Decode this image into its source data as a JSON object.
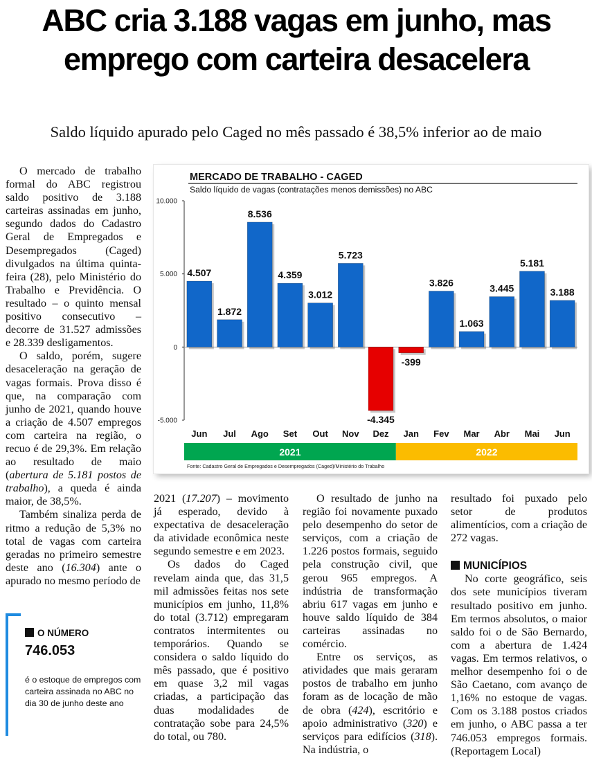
{
  "headline": "ABC cria 3.188 vagas em junho, mas emprego com carteira desacelera",
  "subhead": "Saldo líquido apurado pelo Caged no mês passado é 38,5% inferior ao de maio",
  "col1": {
    "p1": "O mercado de trabalho formal do ABC registrou saldo positivo de 3.188 carteiras assinadas em junho, segundo dados do Cadastro Geral de Empregados e Desempregados (Caged) divulgados na última quinta-feira (28), pelo Ministério do Trabalho e Previdência. O resultado – o quinto mensal positivo consecutivo – decorre de 31.527 admissões e 28.339 desligamentos.",
    "p2a": "O saldo, porém, sugere desaceleração na geração de vagas formais. Prova disso é que, na comparação com junho de 2021, quando houve a criação de 4.507 empregos com carteira na região, o recuo é de 29,3%. Em relação ao resultado de maio (",
    "p2i": "abertura de 5.181 postos de trabalho",
    "p2b": "), a queda é ainda maior, de 38,5%.",
    "p3a": "Também sinaliza perda de ritmo a redução de 5,3% no total de vagas com carteira geradas no primeiro semestre deste ano (",
    "p3i": "16.304",
    "p3b": ") ante o apurado no mesmo período de"
  },
  "col2": {
    "p1a": "2021 (",
    "p1i": "17.207",
    "p1b": ") – movimento já esperado, devido à expectativa de desaceleração da atividade econômica neste segundo semestre e em 2023.",
    "p2": "Os dados do Caged revelam ainda que, das 31,5 mil admissões feitas nos sete municípios em junho, 11,8% do total (3.712) empregaram contratos intermitentes ou temporários. Quando se considera o saldo líquido do mês passado, que é positivo em quase 3,2 mil vagas criadas, a participação das duas modalidades de contratação sobe para 24,5% do total, ou 780."
  },
  "col3": {
    "p1": "O resultado de junho na região foi novamente puxado pelo desempenho do setor de serviços, com a criação de 1.226 postos formais, seguido pela construção civil, que gerou 965 empregos. A indústria de transformação abriu 617 vagas em junho e houve saldo líquido de 384 carteiras assinadas no comércio.",
    "p2a": "Entre os serviços, as atividades que mais geraram postos de trabalho em junho foram as de locação de mão de obra (",
    "p2i1": "424",
    "p2b": "), escritório e apoio administrativo (",
    "p2i2": "320",
    "p2c": ") e serviços para edifícios (",
    "p2i3": "318",
    "p2d": "). Na indústria, o"
  },
  "col4": {
    "p1": "resultado foi puxado pelo setor de produtos alimentícios, com a criação de 272 vagas.",
    "section_title": "MUNICÍPIOS",
    "p2": "No corte geográfico, seis dos sete municípios tiveram resultado positivo em junho. Em termos absolutos, o maior saldo foi o de São Bernardo, com a abertura de 1.424 vagas. Em termos relativos, o melhor desempenho foi o de São Caetano, com avanço de 1,16% no estoque de vagas. Com os 3.188 postos criados em junho, o ABC passa a ter 746.053 empregos formais. (Reportagem Local)"
  },
  "number_box": {
    "label": "O NÚMERO",
    "value": "746.053",
    "description": "é o estoque de empregos com carteira assinada no ABC no dia 30 de junho deste ano"
  },
  "chart_data": {
    "type": "bar",
    "title": "MERCADO DE TRABALHO - CAGED",
    "subtitle": "Saldo líquido de vagas (contratações menos demissões) no ABC",
    "categories": [
      "Jun",
      "Jul",
      "Ago",
      "Set",
      "Out",
      "Nov",
      "Dez",
      "Jan",
      "Fev",
      "Mar",
      "Abr",
      "Mai",
      "Jun"
    ],
    "values": [
      4507,
      1872,
      8536,
      4359,
      3012,
      5723,
      -4345,
      -399,
      3826,
      1063,
      3445,
      5181,
      3188
    ],
    "value_labels": [
      "4.507",
      "1.872",
      "8.536",
      "4.359",
      "3.012",
      "5.723",
      "-4.345",
      "-399",
      "3.826",
      "1.063",
      "3.445",
      "5.181",
      "3.188"
    ],
    "ylim": [
      -5000,
      10000
    ],
    "yticks": [
      {
        "value": 10000,
        "label": "10.000"
      },
      {
        "value": 5000,
        "label": "5.000"
      },
      {
        "value": 0,
        "label": "0"
      },
      {
        "value": -5000,
        "label": "-5.000"
      }
    ],
    "xlabel": "",
    "ylabel": "",
    "grid": false,
    "years": [
      {
        "label": "2021",
        "from": 0,
        "to": 6,
        "color": "#00a650"
      },
      {
        "label": "2022",
        "from": 7,
        "to": 12,
        "color": "#fbbc00"
      }
    ],
    "colors": {
      "positive": "#1167c9",
      "negative": "#e60000"
    },
    "source": "Fonte: Cadastro Geral de Empregados e Desempregados (Caged)/Ministério do Trabalho"
  }
}
